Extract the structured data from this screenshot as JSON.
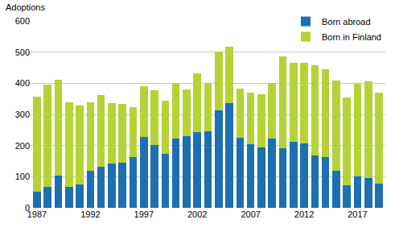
{
  "chart_data": {
    "type": "bar",
    "stacked": true,
    "y_label": "Adoptions",
    "categories": [
      "1987",
      null,
      null,
      null,
      null,
      "1992",
      null,
      null,
      null,
      null,
      "1997",
      null,
      null,
      null,
      null,
      "2002",
      null,
      null,
      null,
      null,
      "2007",
      null,
      null,
      null,
      null,
      "2012",
      null,
      null,
      null,
      null,
      "2017",
      null,
      null
    ],
    "series": [
      {
        "name": "Born abroad",
        "color": "#1c6fb0",
        "values": [
          52,
          68,
          103,
          68,
          75,
          120,
          133,
          142,
          145,
          163,
          228,
          202,
          172,
          222,
          230,
          242,
          245,
          312,
          337,
          225,
          205,
          195,
          222,
          192,
          212,
          208,
          167,
          162,
          120,
          72,
          102,
          95,
          78
        ]
      },
      {
        "name": "Born in Finland",
        "color": "#b5d335",
        "values": [
          305,
          328,
          307,
          270,
          253,
          220,
          229,
          195,
          188,
          160,
          162,
          175,
          173,
          180,
          150,
          191,
          155,
          190,
          180,
          158,
          165,
          170,
          178,
          295,
          254,
          258,
          291,
          282,
          288,
          283,
          295,
          310,
          292
        ]
      }
    ],
    "ylim": [
      0,
      600
    ],
    "yticks": [
      0,
      100,
      200,
      300,
      400,
      500,
      600
    ],
    "grid": true,
    "legend": "upper right"
  }
}
